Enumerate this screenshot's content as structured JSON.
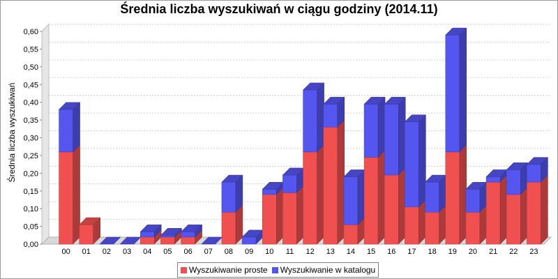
{
  "chart_data": {
    "type": "bar",
    "stacked": true,
    "title": "Średnia liczba wyszukiwań w ciągu godziny (2014.11)",
    "xlabel": "",
    "ylabel": "Średnia liczba wyszukiwań",
    "ylim": [
      0,
      0.6
    ],
    "yticks": [
      "0,00",
      "0,05",
      "0,10",
      "0,15",
      "0,20",
      "0,25",
      "0,30",
      "0,35",
      "0,40",
      "0,45",
      "0,50",
      "0,55",
      "0,60"
    ],
    "grid": true,
    "legend_position": "bottom",
    "categories": [
      "00",
      "01",
      "02",
      "03",
      "04",
      "05",
      "06",
      "07",
      "08",
      "09",
      "10",
      "11",
      "12",
      "13",
      "14",
      "15",
      "16",
      "17",
      "18",
      "19",
      "20",
      "21",
      "22",
      "23"
    ],
    "series": [
      {
        "name": "Wyszukiwanie proste",
        "color": "#f05050",
        "values": [
          0.26,
          0.055,
          0.0,
          0.0,
          0.02,
          0.02,
          0.02,
          0.0,
          0.09,
          0.0,
          0.14,
          0.145,
          0.26,
          0.33,
          0.055,
          0.245,
          0.195,
          0.105,
          0.09,
          0.26,
          0.09,
          0.175,
          0.14,
          0.175
        ]
      },
      {
        "name": "Wyszukiwanie w katalogu",
        "color": "#5555f0",
        "values": [
          0.12,
          0.0,
          0.0,
          0.0,
          0.015,
          0.005,
          0.015,
          0.0,
          0.085,
          0.02,
          0.015,
          0.05,
          0.175,
          0.065,
          0.135,
          0.15,
          0.2,
          0.24,
          0.085,
          0.33,
          0.065,
          0.015,
          0.07,
          0.05
        ]
      }
    ]
  }
}
